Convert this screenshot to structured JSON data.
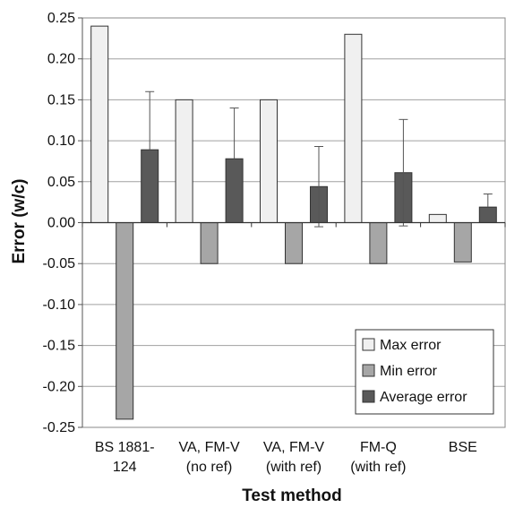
{
  "chart_data": {
    "type": "bar",
    "xlabel": "Test method",
    "ylabel": "Error (w/c)",
    "ylim": [
      -0.25,
      0.25
    ],
    "yticks": [
      0.25,
      0.2,
      0.15,
      0.1,
      0.05,
      0.0,
      -0.05,
      -0.1,
      -0.15,
      -0.2,
      -0.25
    ],
    "ytick_labels": [
      "0.25",
      "0.20",
      "0.15",
      "0.10",
      "0.05",
      "0.00",
      "-0.05",
      "-0.10",
      "-0.15",
      "-0.20",
      "-0.25"
    ],
    "grid": true,
    "legend_position": "bottom-right",
    "categories": [
      [
        "BS 1881-",
        "124"
      ],
      [
        "VA, FM-V",
        "(no ref)"
      ],
      [
        "VA, FM-V",
        "(with ref)"
      ],
      [
        "FM-Q",
        "(with ref)"
      ],
      [
        "BSE"
      ]
    ],
    "series": [
      {
        "name": "Max error",
        "color": "#f0f0f0",
        "values": [
          0.24,
          0.15,
          0.15,
          0.23,
          0.01
        ]
      },
      {
        "name": "Min error",
        "color": "#a6a6a6",
        "values": [
          -0.24,
          -0.05,
          -0.05,
          -0.05,
          -0.048
        ]
      },
      {
        "name": "Average error",
        "color": "#595959",
        "values": [
          0.089,
          0.078,
          0.044,
          0.061,
          0.019
        ],
        "error_upper": [
          0.16,
          0.14,
          0.093,
          0.126,
          0.035
        ],
        "error_lower": [
          null,
          null,
          -0.005,
          -0.004,
          null
        ]
      }
    ]
  }
}
